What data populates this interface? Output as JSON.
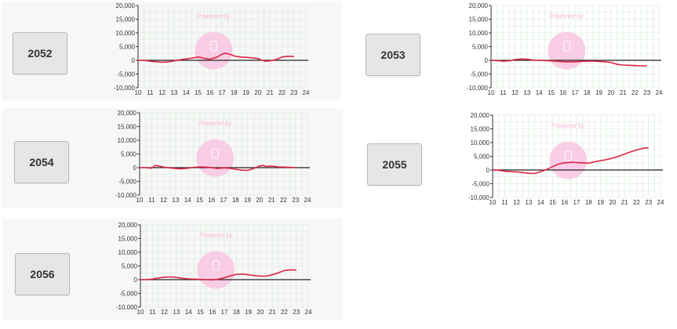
{
  "colors": {
    "line": "#dd2244",
    "zero_line": "#222222",
    "grid": "#d6ead6",
    "watermark": "#f9c6e2",
    "watermark_text": "#f7b8da",
    "panel_bg": "#f7f7f7",
    "button_bg": "#e6e6e6"
  },
  "watermark_text": "Powered by",
  "chart_data": [
    {
      "type": "line",
      "label": "2052",
      "x_ticks": [
        "10",
        "11",
        "12",
        "13",
        "14",
        "15",
        "16",
        "17",
        "18",
        "19",
        "20",
        "21",
        "22",
        "23",
        "24"
      ],
      "y_ticks": [
        "20,000",
        "15,000",
        "10,000",
        "5,000",
        "0",
        "-5,000",
        "-10,000"
      ],
      "xlim": [
        10,
        24
      ],
      "ylim": [
        -10000,
        20000
      ],
      "x": [
        10,
        10.5,
        11,
        11.5,
        12,
        12.5,
        13,
        13.5,
        14,
        14.5,
        15,
        15.3,
        15.6,
        16,
        16.3,
        16.6,
        16.9,
        17.2,
        17.5,
        17.8,
        18,
        18.5,
        19,
        19.5,
        20,
        20.3,
        20.6,
        21,
        21.3,
        21.6,
        22,
        22.5,
        23
      ],
      "y": [
        0,
        0,
        -300,
        -500,
        -700,
        -600,
        -200,
        200,
        500,
        800,
        1200,
        1000,
        600,
        400,
        800,
        1200,
        2000,
        2600,
        2400,
        2000,
        1600,
        1200,
        1100,
        900,
        600,
        100,
        -300,
        -200,
        100,
        400,
        1200,
        1500,
        1400
      ]
    },
    {
      "type": "line",
      "label": "2053",
      "x_ticks": [
        "10",
        "11",
        "12",
        "13",
        "14",
        "15",
        "16",
        "17",
        "18",
        "19",
        "20",
        "21",
        "22",
        "23",
        "24"
      ],
      "y_ticks": [
        "20,000",
        "15,000",
        "10,000",
        "5,000",
        "0",
        "-5,000",
        "-10,000"
      ],
      "xlim": [
        10,
        24
      ],
      "ylim": [
        -10000,
        20000
      ],
      "x": [
        10,
        10.5,
        11,
        11.5,
        12,
        12.5,
        13,
        13.5,
        14,
        14.5,
        15,
        15.5,
        16,
        16.5,
        17,
        17.5,
        18,
        18.5,
        19,
        19.5,
        20,
        20.3,
        20.6,
        21,
        21.5,
        22,
        22.5,
        23
      ],
      "y": [
        0,
        -100,
        -300,
        -200,
        300,
        500,
        400,
        100,
        0,
        -100,
        -200,
        -300,
        -500,
        -600,
        -500,
        -400,
        -300,
        -300,
        -400,
        -500,
        -800,
        -1200,
        -1500,
        -1700,
        -1800,
        -1900,
        -2000,
        -2000
      ]
    },
    {
      "type": "line",
      "label": "2054",
      "x_ticks": [
        "10",
        "11",
        "12",
        "13",
        "14",
        "15",
        "16",
        "17",
        "18",
        "19",
        "20",
        "21",
        "22",
        "23",
        "24"
      ],
      "y_ticks": [
        "20,000",
        "15,000",
        "10,000",
        "5,000",
        "0",
        "-5,000",
        "-10,000"
      ],
      "xlim": [
        10,
        24
      ],
      "ylim": [
        -10000,
        20000
      ],
      "x": [
        10,
        10.5,
        11,
        11.3,
        11.6,
        12,
        12.5,
        13,
        13.5,
        14,
        14.5,
        15,
        15.5,
        16,
        16.5,
        17,
        17.5,
        18,
        18.5,
        19,
        19.5,
        20,
        20.3,
        20.6,
        21,
        21.5,
        22,
        22.5,
        23
      ],
      "y": [
        0,
        0,
        -200,
        800,
        600,
        200,
        -100,
        -300,
        -400,
        -200,
        100,
        300,
        200,
        0,
        -300,
        -100,
        -200,
        -600,
        -900,
        -1000,
        -300,
        600,
        800,
        400,
        600,
        300,
        200,
        100,
        0
      ]
    },
    {
      "type": "line",
      "label": "2055",
      "x_ticks": [
        "10",
        "11",
        "12",
        "13",
        "14",
        "15",
        "16",
        "17",
        "18",
        "19",
        "20",
        "21",
        "22",
        "23",
        "24"
      ],
      "y_ticks": [
        "20,000",
        "15,000",
        "10,000",
        "5,000",
        "0",
        "-5,000",
        "-10,000"
      ],
      "xlim": [
        10,
        24
      ],
      "ylim": [
        -10000,
        20000
      ],
      "x": [
        10,
        10.5,
        11,
        11.5,
        12,
        12.5,
        13,
        13.5,
        14,
        14.5,
        15,
        15.5,
        16,
        16.5,
        17,
        17.5,
        18,
        18.5,
        19,
        19.5,
        20,
        20.5,
        21,
        21.5,
        22,
        22.5,
        23
      ],
      "y": [
        0,
        -100,
        -400,
        -600,
        -700,
        -900,
        -1200,
        -1300,
        -600,
        200,
        1200,
        2200,
        2600,
        2800,
        2700,
        2600,
        2500,
        3000,
        3400,
        3800,
        4300,
        5000,
        5800,
        6600,
        7300,
        7900,
        8100
      ]
    },
    {
      "type": "line",
      "label": "2056",
      "x_ticks": [
        "10",
        "11",
        "12",
        "13",
        "14",
        "15",
        "16",
        "17",
        "18",
        "19",
        "20",
        "21",
        "22",
        "23",
        "24"
      ],
      "y_ticks": [
        "20,000",
        "15,000",
        "10,000",
        "5,000",
        "0",
        "-5,000",
        "-10,000"
      ],
      "xlim": [
        10,
        24
      ],
      "ylim": [
        -10000,
        20000
      ],
      "x": [
        10,
        10.5,
        11,
        11.5,
        12,
        12.5,
        13,
        13.5,
        14,
        14.5,
        15,
        15.5,
        16,
        16.5,
        17,
        17.5,
        18,
        18.5,
        19,
        19.5,
        20,
        20.5,
        21,
        21.5,
        22,
        22.5,
        23
      ],
      "y": [
        0,
        0,
        200,
        600,
        900,
        1000,
        800,
        500,
        300,
        200,
        100,
        0,
        -100,
        200,
        700,
        1400,
        1900,
        2000,
        1800,
        1500,
        1300,
        1300,
        1800,
        2500,
        3300,
        3600,
        3500
      ]
    }
  ]
}
